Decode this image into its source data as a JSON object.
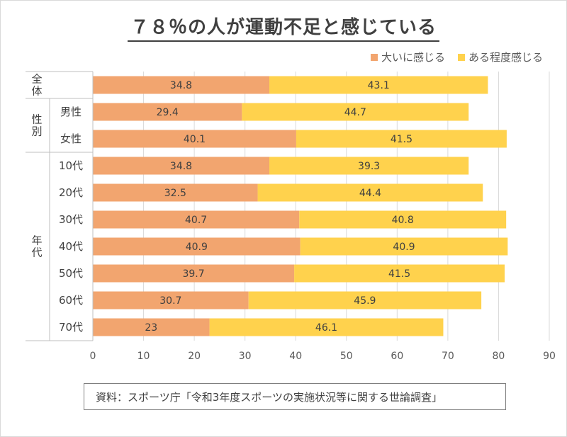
{
  "title": "７８％の人が運動不足と感じている",
  "legend": [
    {
      "label": "大いに感じる",
      "color": "#F2A56F"
    },
    {
      "label": "ある程度感じる",
      "color": "#FFD24D"
    }
  ],
  "source": "資料：スポーツ庁「令和3年度スポーツの実施状況等に関する世論調査」",
  "chart_data": {
    "type": "bar",
    "orientation": "horizontal",
    "stacked": true,
    "categories": [
      "全体",
      "男性",
      "女性",
      "10代",
      "20代",
      "30代",
      "40代",
      "50代",
      "60代",
      "70代"
    ],
    "groups": [
      {
        "label": "全体",
        "categories": [
          "全体"
        ]
      },
      {
        "label": "性別",
        "categories": [
          "男性",
          "女性"
        ]
      },
      {
        "label": "年代",
        "categories": [
          "10代",
          "20代",
          "30代",
          "40代",
          "50代",
          "60代",
          "70代"
        ]
      }
    ],
    "series": [
      {
        "name": "大いに感じる",
        "color": "#F2A56F",
        "values": [
          34.8,
          29.4,
          40.1,
          34.8,
          32.5,
          40.7,
          40.9,
          39.7,
          30.7,
          23
        ]
      },
      {
        "name": "ある程度感じる",
        "color": "#FFD24D",
        "values": [
          43.1,
          44.7,
          41.5,
          39.3,
          44.4,
          40.8,
          40.9,
          41.5,
          45.9,
          46.1
        ]
      }
    ],
    "xlim": [
      0,
      90
    ],
    "xticks": [
      "0",
      "10",
      "20",
      "30",
      "40",
      "50",
      "60",
      "70",
      "80",
      "90"
    ],
    "grid": true,
    "legend_position": "top-right"
  }
}
